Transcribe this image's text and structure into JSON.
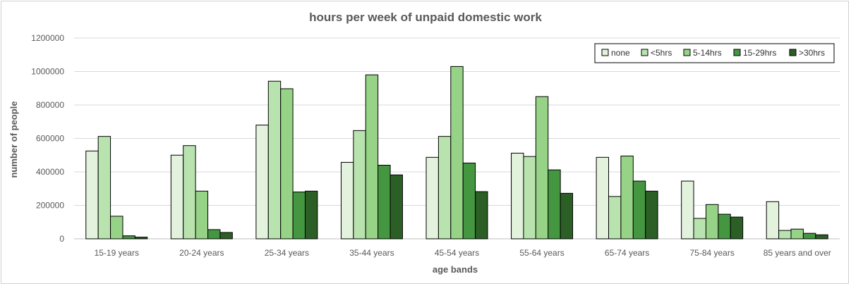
{
  "chart_data": {
    "type": "bar",
    "title": "hours per week of unpaid domestic work",
    "xlabel": "age bands",
    "ylabel": "number of people",
    "ylim": [
      0,
      1200000
    ],
    "yticks": [
      0,
      200000,
      400000,
      600000,
      800000,
      1000000,
      1200000
    ],
    "ytick_labels": [
      "0",
      "200000",
      "400000",
      "600000",
      "800000",
      "1000000",
      "1200000"
    ],
    "grid": true,
    "legend_position": "top-right",
    "categories": [
      "15-19 years",
      "20-24 years",
      "25-34 years",
      "35-44 years",
      "45-54 years",
      "55-64 years",
      "65-74 years",
      "75-84 years",
      "85 years and over"
    ],
    "series": [
      {
        "name": "none",
        "color": "#e2f2dc",
        "values": [
          525000,
          500000,
          680000,
          457000,
          487000,
          512000,
          487000,
          345000,
          222000
        ]
      },
      {
        "name": "<5hrs",
        "color": "#b9e3ae",
        "values": [
          612000,
          557000,
          942000,
          647000,
          612000,
          492000,
          253000,
          122000,
          50000
        ]
      },
      {
        "name": "5-14hrs",
        "color": "#96d386",
        "values": [
          135000,
          285000,
          897000,
          980000,
          1030000,
          850000,
          495000,
          205000,
          58000
        ]
      },
      {
        "name": "15-29hrs",
        "color": "#449640",
        "values": [
          18000,
          55000,
          280000,
          440000,
          453000,
          412000,
          345000,
          147000,
          33000
        ]
      },
      {
        "name": ">30hrs",
        "color": "#2c5f25",
        "values": [
          10000,
          38000,
          285000,
          382000,
          282000,
          272000,
          285000,
          130000,
          24000
        ]
      }
    ]
  }
}
